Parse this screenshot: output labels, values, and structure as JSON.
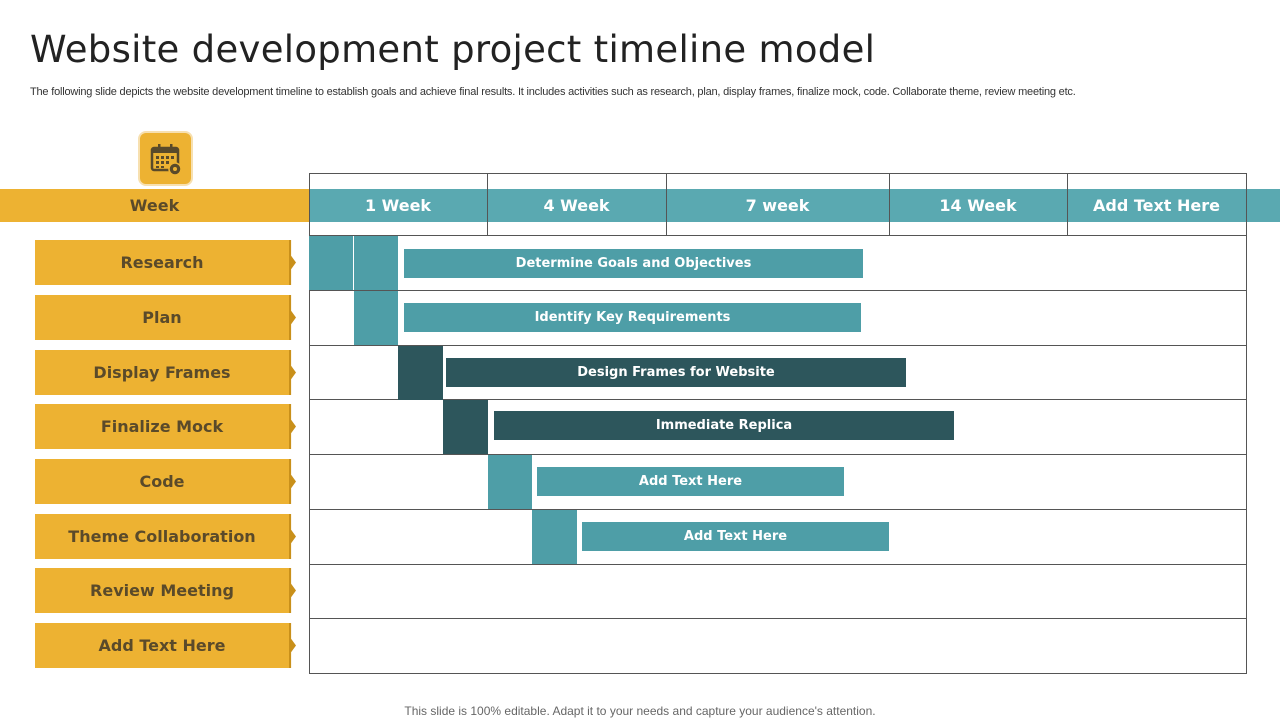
{
  "title": "Website development project timeline model",
  "subtitle": "The following slide depicts the website development timeline to establish goals and achieve final results. It includes activities such as research, plan, display frames, finalize mock, code. Collaborate theme, review meeting etc.",
  "footer": "This slide is 100% editable. Adapt it to your needs and capture your audience's attention.",
  "header_label": "Week",
  "columns": [
    "1 Week",
    "4 Week",
    "7 week",
    "14 Week",
    "Add Text Here"
  ],
  "rows": [
    "Research",
    "Plan",
    "Display Frames",
    "Finalize Mock",
    "Code",
    "Theme Collaboration",
    "Review Meeting",
    "Add Text Here"
  ],
  "bars": [
    "Determine Goals and Objectives",
    "Identify Key Requirements",
    "Design Frames for Website",
    "Immediate Replica",
    "Add Text Here",
    "Add Text Here"
  ],
  "colors": {
    "gold": "#edb232",
    "teal": "#4e9ea7",
    "dark_teal": "#2d565c"
  },
  "icons": {
    "header": "calendar-icon"
  }
}
